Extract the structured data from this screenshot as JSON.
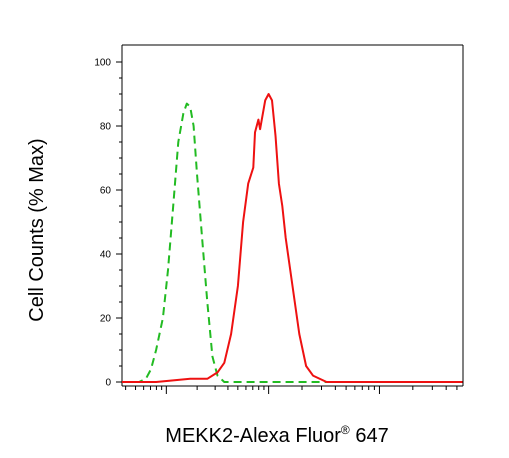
{
  "chart_data": {
    "type": "line",
    "title": "",
    "xlabel": "MEKK2-Alexa Fluor",
    "xlabel_superscript": "®",
    "xlabel_suffix": " 647",
    "ylabel": "Cell Counts (% Max)",
    "x_scale": "log",
    "x_tick_labels": [],
    "ylim": [
      0,
      100
    ],
    "y_ticks": [
      0,
      20,
      40,
      60,
      80,
      100
    ],
    "grid": false,
    "legend": "none",
    "series": [
      {
        "color": "#22bb22",
        "line_style": "dashed",
        "points": [
          [
            0,
            0
          ],
          [
            0.05,
            0
          ],
          [
            0.07,
            1
          ],
          [
            0.085,
            4
          ],
          [
            0.1,
            10
          ],
          [
            0.12,
            20
          ],
          [
            0.135,
            35
          ],
          [
            0.15,
            55
          ],
          [
            0.165,
            75
          ],
          [
            0.18,
            84
          ],
          [
            0.19,
            87
          ],
          [
            0.2,
            86
          ],
          [
            0.21,
            80
          ],
          [
            0.22,
            65
          ],
          [
            0.235,
            45
          ],
          [
            0.25,
            25
          ],
          [
            0.265,
            8
          ],
          [
            0.28,
            2
          ],
          [
            0.3,
            0
          ],
          [
            0.4,
            0
          ],
          [
            0.6,
            0
          ],
          [
            1.0,
            0
          ]
        ]
      },
      {
        "color": "#ee1111",
        "line_style": "solid",
        "points": [
          [
            0,
            0
          ],
          [
            0.1,
            0
          ],
          [
            0.2,
            1
          ],
          [
            0.25,
            1
          ],
          [
            0.28,
            3
          ],
          [
            0.3,
            6
          ],
          [
            0.32,
            15
          ],
          [
            0.34,
            30
          ],
          [
            0.355,
            50
          ],
          [
            0.37,
            62
          ],
          [
            0.385,
            67
          ],
          [
            0.39,
            78
          ],
          [
            0.4,
            82
          ],
          [
            0.405,
            79
          ],
          [
            0.41,
            82
          ],
          [
            0.42,
            88
          ],
          [
            0.43,
            90
          ],
          [
            0.44,
            88
          ],
          [
            0.45,
            77
          ],
          [
            0.46,
            62
          ],
          [
            0.47,
            55
          ],
          [
            0.48,
            45
          ],
          [
            0.5,
            30
          ],
          [
            0.52,
            15
          ],
          [
            0.54,
            5
          ],
          [
            0.56,
            2
          ],
          [
            0.6,
            0
          ],
          [
            0.8,
            0
          ],
          [
            1.0,
            0
          ]
        ]
      }
    ]
  }
}
